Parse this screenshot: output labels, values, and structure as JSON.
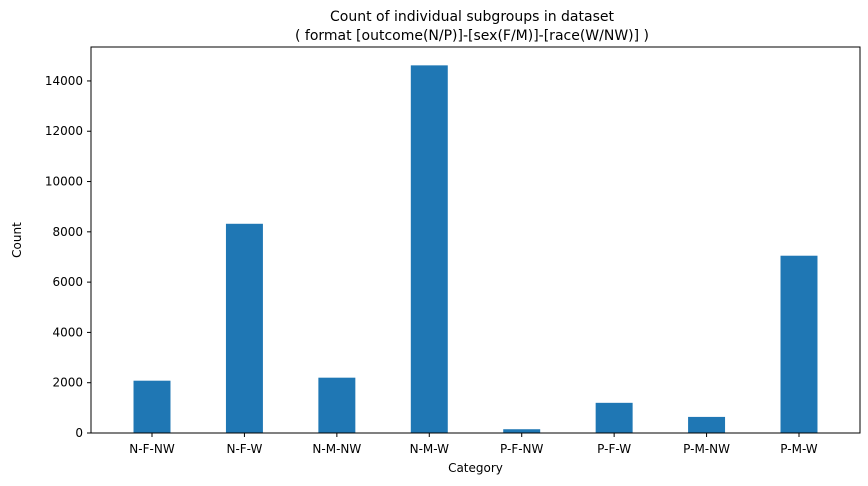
{
  "chart_data": {
    "type": "bar",
    "title": "Count of individual subgroups in dataset",
    "subtitle": "( format [outcome(N/P)]-[sex(F/M)]-[race(W/NW)] )",
    "xlabel": "Category",
    "ylabel": "Count",
    "categories": [
      "N-F-NW",
      "N-F-W",
      "N-M-NW",
      "N-M-W",
      "P-F-NW",
      "P-F-W",
      "P-M-NW",
      "P-M-W"
    ],
    "values": [
      2080,
      8320,
      2200,
      14620,
      150,
      1200,
      640,
      7050
    ],
    "ylim": [
      0,
      15350
    ],
    "yticks": [
      0,
      2000,
      4000,
      6000,
      8000,
      10000,
      12000,
      14000
    ],
    "bar_color": "#1f77b4",
    "grid": false,
    "legend": false
  }
}
